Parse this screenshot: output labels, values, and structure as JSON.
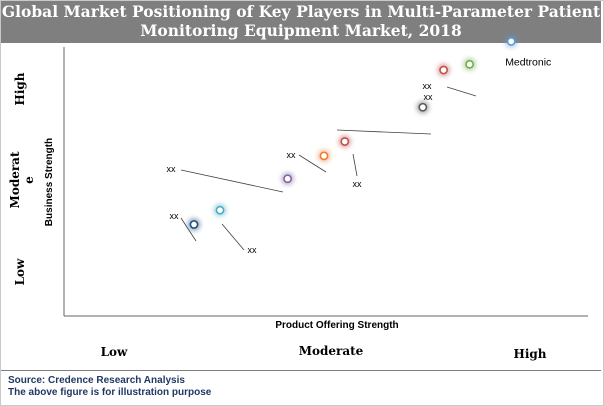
{
  "title_line1": "Global Market Positioning of Key Players in Multi-Parameter Patient",
  "title_line2": "Monitoring Equipment Market, 2018",
  "footer": {
    "source": "Source: Credence Research Analysis",
    "note": "The above figure is for illustration purpose"
  },
  "chart_data": {
    "type": "scatter",
    "xlabel": "Product Offering Strength",
    "ylabel": "Business Strength",
    "x_levels": [
      "Low",
      "Moderate",
      "High"
    ],
    "y_levels": [
      "Low",
      "Moderat e",
      "High"
    ],
    "xlim": [
      0,
      10
    ],
    "ylim": [
      0,
      10
    ],
    "grid": false,
    "points": [
      {
        "label": "Medtronic",
        "x": 8.6,
        "y": 9.6,
        "color": "#5b9bd5",
        "label_side": "below-right"
      },
      {
        "label": "xx",
        "x": 7.8,
        "y": 8.8,
        "color": "#70ad47",
        "label_side": "left-leader"
      },
      {
        "label": "xx",
        "x": 7.3,
        "y": 8.6,
        "color": "#c0504d",
        "label_side": "left"
      },
      {
        "label": "",
        "x": 6.9,
        "y": 7.3,
        "color": "#595959",
        "label_side": "none"
      },
      {
        "label": "xx",
        "x": 5.4,
        "y": 6.1,
        "color": "#c0504d",
        "label_side": "below"
      },
      {
        "label": "xx",
        "x": 5.0,
        "y": 5.6,
        "color": "#ed7d31",
        "label_side": "left-leader"
      },
      {
        "label": "xx",
        "x": 4.3,
        "y": 4.8,
        "color": "#8064a2",
        "label_side": "left-leader"
      },
      {
        "label": "xx",
        "x": 3.0,
        "y": 3.7,
        "color": "#4bacc6",
        "label_side": "right-leader"
      },
      {
        "label": "xx",
        "x": 2.5,
        "y": 3.2,
        "color": "#1f4e79",
        "label_side": "left-leader"
      }
    ]
  },
  "colors": {
    "title_background": "#7f7f7f",
    "footer_text": "#1f3864",
    "axis": "#666666"
  }
}
